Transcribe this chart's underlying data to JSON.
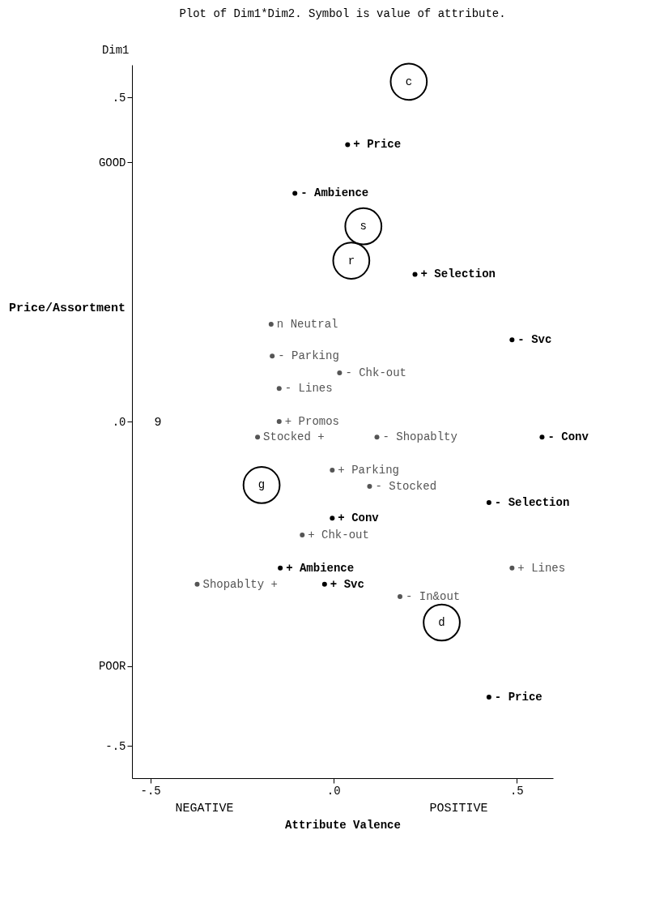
{
  "chart_data": {
    "type": "scatter",
    "title": "Plot of Dim1*Dim2.  Symbol is value of attribute.",
    "xlabel": "Attribute Valence",
    "ylabel": "Dim1",
    "xlim": [
      -0.55,
      0.6
    ],
    "ylim": [
      -0.55,
      0.55
    ],
    "xticks": [
      {
        "value": -0.5,
        "label": "-.5"
      },
      {
        "value": 0,
        "label": ".0"
      },
      {
        "value": 0.5,
        "label": ".5"
      }
    ],
    "yticks": [
      {
        "value": 0.5,
        "label": ".5"
      },
      {
        "value": 0.4,
        "label": "GOOD"
      },
      {
        "value": 0,
        "label": ".0"
      },
      {
        "value": -0.377,
        "label": "POOR"
      },
      {
        "value": -0.5,
        "label": "-.5"
      }
    ],
    "annotations": [
      "Price/Assortment",
      "NEGATIVE",
      "POSITIVE",
      "9"
    ],
    "series": [
      {
        "marker": "none",
        "color": "#000000",
        "x": [
          0.039,
          -0.105,
          0.223,
          0.488,
          0.57,
          0.425,
          -0.003,
          -0.145,
          -0.024,
          0.425
        ],
        "values": [
          0.427,
          0.352,
          0.227,
          0.126,
          -0.024,
          -0.125,
          -0.149,
          -0.226,
          -0.251,
          -0.425
        ],
        "value_labels": [
          "+  Price",
          "- Ambience",
          "+ Selection",
          "- Svc",
          "- Conv",
          "- Selection",
          "+ Conv",
          "+ Ambience",
          "+ Svc",
          "- Price"
        ]
      },
      {
        "marker": "none",
        "color": "#555555",
        "x": [
          -0.17,
          -0.167,
          0.017,
          -0.148,
          -0.148,
          -0.207,
          0.119,
          -0.003,
          0.099,
          -0.085,
          0.488,
          -0.372,
          0.182
        ],
        "values": [
          0.15,
          0.101,
          0.075,
          0.051,
          0.0,
          -0.024,
          -0.024,
          -0.075,
          -0.1,
          -0.175,
          -0.226,
          -0.251,
          -0.27
        ],
        "value_labels": [
          "n Neutral",
          "- Parking",
          "- Chk-out",
          "- Lines",
          "+ Promos",
          "Stocked +",
          "- Shopablty",
          "+ Parking",
          "- Stocked",
          "+ Chk-out",
          "+ Lines",
          "Shopablty +",
          "- In&out"
        ]
      },
      {
        "marker": "circle",
        "color": "#000000",
        "x": [
          0.206,
          0.082,
          0.049,
          -0.196,
          0.296
        ],
        "values": [
          0.524,
          0.301,
          0.248,
          -0.098,
          -0.31
        ],
        "value_labels": [
          "c",
          "s",
          "r",
          "g",
          "d"
        ]
      }
    ]
  }
}
